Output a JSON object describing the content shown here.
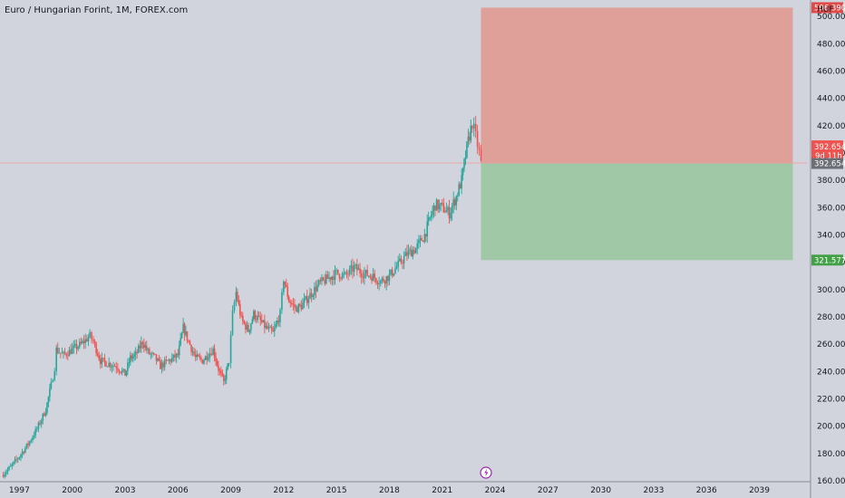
{
  "header": {
    "title": "Euro / Hungarian Forint, 1M, FOREX.com"
  },
  "axis": {
    "currency": "HUF"
  },
  "colors": {
    "background": "#d1d4dc",
    "up": "#26a69a",
    "down": "#ef5350",
    "stop_zone": "#e0a09a",
    "target_zone": "#a0c8a6",
    "price_line": "#ef9a9a"
  },
  "tags": {
    "stop": "506.390",
    "last": "392.654",
    "countdown": "9d 11h",
    "entry": "392.654",
    "target": "321.577"
  },
  "event_icon": "lightning-icon",
  "chart_data": {
    "type": "candlestick",
    "title": "Euro / Hungarian Forint, 1M, FOREX.com",
    "currency": "HUF",
    "x_ticks": [
      "1997",
      "2000",
      "2003",
      "2006",
      "2009",
      "2012",
      "2015",
      "2018",
      "2021",
      "2024",
      "2027",
      "2030",
      "2033",
      "2036",
      "2039"
    ],
    "y_ticks": [
      "160.000",
      "180.000",
      "200.000",
      "220.000",
      "240.000",
      "260.000",
      "280.000",
      "300.000",
      "320.000",
      "340.000",
      "360.000",
      "380.000",
      "400.000",
      "420.000",
      "440.000",
      "460.000",
      "480.000",
      "500.000"
    ],
    "ylim": [
      160,
      512
    ],
    "xlim": [
      1995.9,
      2041.7
    ],
    "grid": false,
    "series_path": [
      [
        1996.0,
        164
      ],
      [
        1996.5,
        170
      ],
      [
        1997.0,
        178
      ],
      [
        1997.5,
        187
      ],
      [
        1998.0,
        198
      ],
      [
        1998.5,
        212
      ],
      [
        1998.8,
        230
      ],
      [
        1999.0,
        243
      ],
      [
        1999.1,
        256
      ],
      [
        1999.5,
        252
      ],
      [
        2000.0,
        256
      ],
      [
        2000.5,
        260
      ],
      [
        2001.0,
        266
      ],
      [
        2001.2,
        262
      ],
      [
        2001.6,
        248
      ],
      [
        2002.0,
        246
      ],
      [
        2002.5,
        244
      ],
      [
        2003.0,
        238
      ],
      [
        2003.3,
        250
      ],
      [
        2003.6,
        252
      ],
      [
        2004.0,
        262
      ],
      [
        2004.3,
        254
      ],
      [
        2004.7,
        250
      ],
      [
        2005.0,
        244
      ],
      [
        2005.5,
        248
      ],
      [
        2006.0,
        252
      ],
      [
        2006.3,
        272
      ],
      [
        2006.6,
        262
      ],
      [
        2007.0,
        250
      ],
      [
        2007.4,
        248
      ],
      [
        2007.8,
        254
      ],
      [
        2008.0,
        256
      ],
      [
        2008.3,
        242
      ],
      [
        2008.6,
        232
      ],
      [
        2008.9,
        248
      ],
      [
        2009.1,
        282
      ],
      [
        2009.3,
        298
      ],
      [
        2009.6,
        278
      ],
      [
        2010.0,
        270
      ],
      [
        2010.3,
        282
      ],
      [
        2010.6,
        278
      ],
      [
        2011.0,
        272
      ],
      [
        2011.4,
        268
      ],
      [
        2011.8,
        282
      ],
      [
        2012.0,
        308
      ],
      [
        2012.3,
        292
      ],
      [
        2012.7,
        286
      ],
      [
        2013.0,
        288
      ],
      [
        2013.5,
        296
      ],
      [
        2014.0,
        304
      ],
      [
        2014.5,
        308
      ],
      [
        2015.0,
        312
      ],
      [
        2015.5,
        310
      ],
      [
        2016.0,
        316
      ],
      [
        2016.5,
        312
      ],
      [
        2017.0,
        310
      ],
      [
        2017.5,
        306
      ],
      [
        2018.0,
        310
      ],
      [
        2018.5,
        318
      ],
      [
        2019.0,
        326
      ],
      [
        2019.5,
        330
      ],
      [
        2020.0,
        340
      ],
      [
        2020.3,
        352
      ],
      [
        2020.6,
        362
      ],
      [
        2021.0,
        360
      ],
      [
        2021.4,
        356
      ],
      [
        2021.8,
        368
      ],
      [
        2022.1,
        380
      ],
      [
        2022.4,
        404
      ],
      [
        2022.7,
        422
      ],
      [
        2022.9,
        412
      ],
      [
        2023.1,
        400
      ],
      [
        2023.2,
        392.654
      ]
    ],
    "position": {
      "type": "short",
      "entry": 392.654,
      "stop": 506.39,
      "target": 321.577,
      "start_x": 2023.2,
      "end_x": 2040.9
    }
  }
}
